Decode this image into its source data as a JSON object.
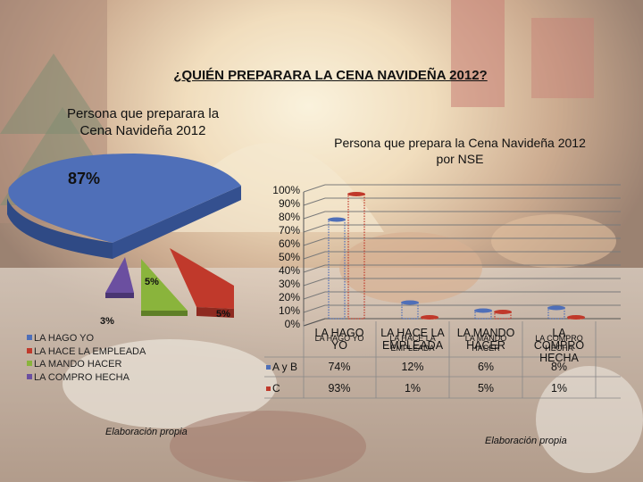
{
  "main_title": "¿QUIÉN PREPARARA LA CENA NAVIDEÑA 2012?",
  "colors": {
    "hago": "#4f6fb8",
    "hace_empleada": "#c0392b",
    "mando_hacer": "#8ab43c",
    "compro_hecha": "#6b4fa0"
  },
  "pie_chart": {
    "title_line1": "Persona que preparara la",
    "title_line2": "Cena Navideña 2012",
    "labels": {
      "hago": "87%",
      "hace_empleada": "5%",
      "mando_hacer": "5%",
      "compro_hecha": "3%"
    },
    "legend": [
      "LA HAGO YO",
      "LA HACE LA EMPLEADA",
      "LA MANDO HACER",
      "LA COMPRO HECHA"
    ],
    "credit": "Elaboración propia"
  },
  "bar_chart_text": {
    "title_line1": "Persona que prepara la Cena Navideña 2012",
    "title_line2": "por NSE",
    "credit": "Elaboración propia",
    "data_labels_small": [
      "LA HAGO YO",
      "LA HACE LA EMPLEADA",
      "LA MANDO HACER",
      "LA COMPRO HECHA"
    ],
    "table": {
      "rows": [
        {
          "label": "A y B",
          "values": [
            "74%",
            "12%",
            "6%",
            "8%"
          ]
        },
        {
          "label": "C",
          "values": [
            "93%",
            "1%",
            "5%",
            "1%"
          ]
        }
      ]
    }
  },
  "chart_data": [
    {
      "type": "pie",
      "title": "Persona que preparara la Cena Navideña 2012",
      "categories": [
        "LA HAGO YO",
        "LA HACE LA EMPLEADA",
        "LA MANDO HACER",
        "LA COMPRO HECHA"
      ],
      "values": [
        87,
        5,
        5,
        3
      ],
      "unit": "%"
    },
    {
      "type": "bar",
      "title": "Persona que prepara la Cena Navideña 2012 por NSE",
      "categories": [
        "LA HAGO YO",
        "LA HACE LA EMPLEADA",
        "LA MANDO HACER",
        "LA COMPRO HECHA"
      ],
      "series": [
        {
          "name": "A y B",
          "values": [
            74,
            12,
            6,
            8
          ]
        },
        {
          "name": "C",
          "values": [
            93,
            1,
            5,
            1
          ]
        }
      ],
      "yticks": [
        "0%",
        "10%",
        "20%",
        "30%",
        "40%",
        "50%",
        "60%",
        "70%",
        "80%",
        "90%",
        "100%"
      ],
      "ylim": [
        0,
        100
      ]
    }
  ]
}
